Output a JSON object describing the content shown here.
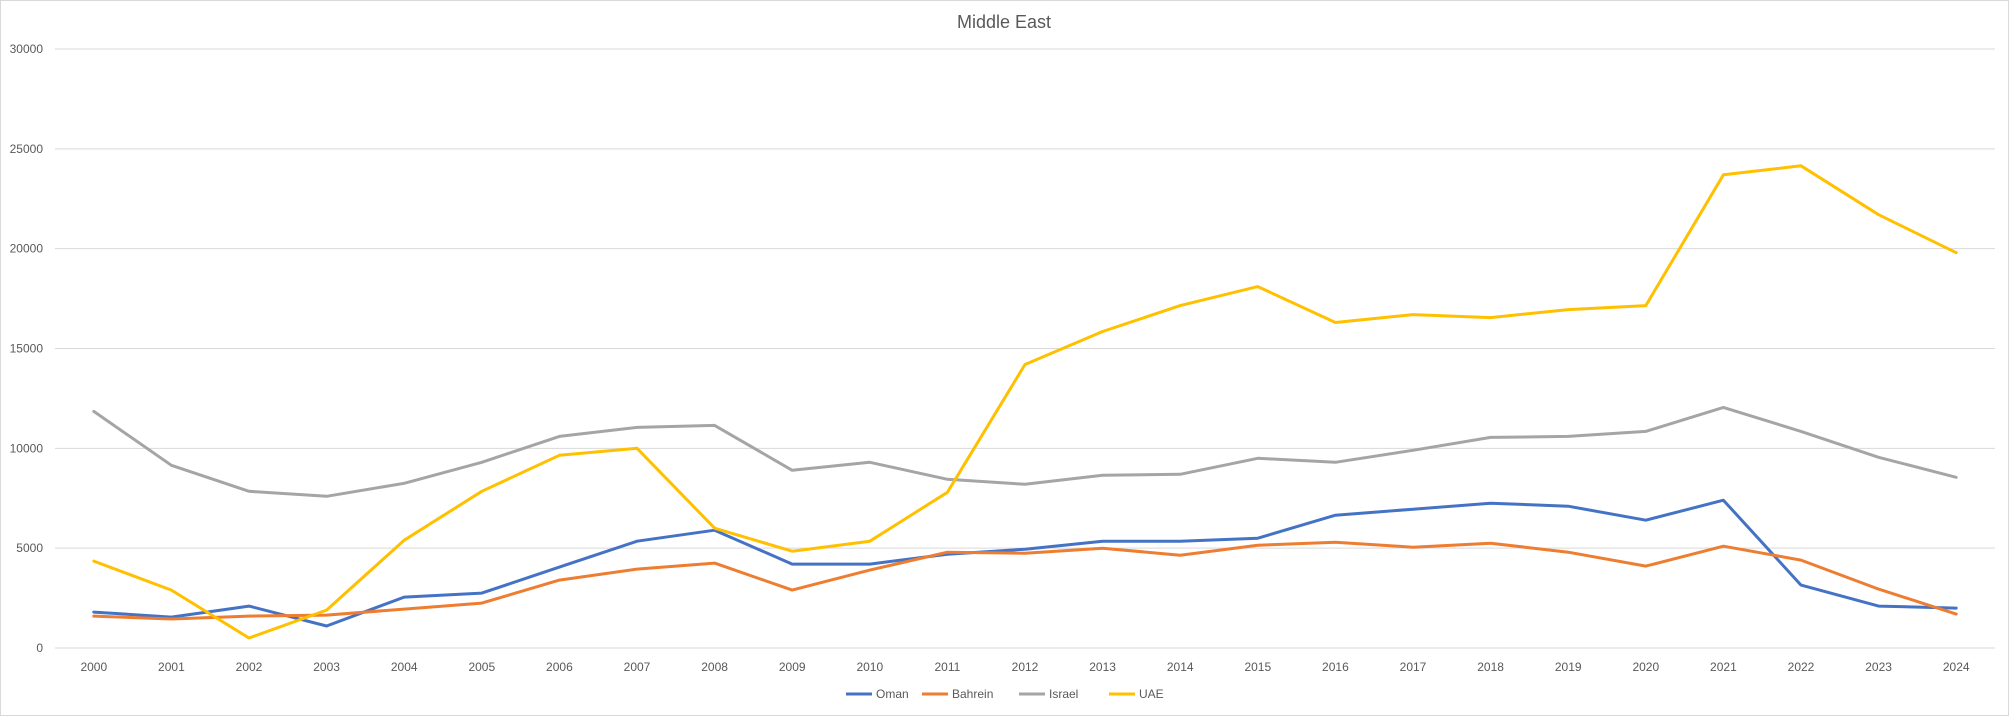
{
  "chart_data": {
    "type": "line",
    "title": "Middle East",
    "xlabel": "",
    "ylabel": "",
    "ylim": [
      0,
      30000
    ],
    "yticks": [
      0,
      5000,
      10000,
      15000,
      20000,
      25000,
      30000
    ],
    "grid": true,
    "legend_position": "bottom",
    "categories": [
      "2000",
      "2001",
      "2002",
      "2003",
      "2004",
      "2005",
      "2006",
      "2007",
      "2008",
      "2009",
      "2010",
      "2011",
      "2012",
      "2013",
      "2014",
      "2015",
      "2016",
      "2017",
      "2018",
      "2019",
      "2020",
      "2021",
      "2022",
      "2023",
      "2024"
    ],
    "series": [
      {
        "name": "Oman",
        "color": "#4472c4",
        "values": [
          1800,
          1550,
          2100,
          1100,
          2550,
          2750,
          4050,
          5350,
          5900,
          4200,
          4200,
          4700,
          4950,
          5350,
          5350,
          5500,
          6650,
          6950,
          7250,
          7100,
          6400,
          7400,
          3150,
          2100,
          2000
        ]
      },
      {
        "name": "Bahrein",
        "color": "#ed7d31",
        "values": [
          1600,
          1450,
          1600,
          1650,
          1950,
          2250,
          3400,
          3950,
          4250,
          2900,
          3900,
          4800,
          4750,
          5000,
          4650,
          5150,
          5300,
          5050,
          5250,
          4800,
          4100,
          5100,
          4400,
          2950,
          1700
        ]
      },
      {
        "name": "Israel",
        "color": "#a5a5a5",
        "values": [
          11850,
          9150,
          7850,
          7600,
          8250,
          9300,
          10600,
          11050,
          11150,
          8900,
          9300,
          8450,
          8200,
          8650,
          8700,
          9500,
          9300,
          9900,
          10550,
          10600,
          10850,
          12050,
          10850,
          9550,
          8550
        ]
      },
      {
        "name": "UAE",
        "color": "#ffc000",
        "values": [
          4350,
          2900,
          500,
          1900,
          5400,
          7850,
          9650,
          10000,
          6000,
          4850,
          5350,
          7800,
          14200,
          15850,
          17150,
          18100,
          16300,
          16700,
          16550,
          16950,
          17150,
          23700,
          24150,
          21700,
          19800
        ]
      }
    ]
  }
}
